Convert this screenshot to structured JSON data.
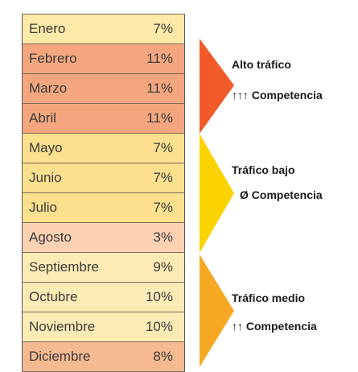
{
  "table": {
    "rows": [
      [
        "Enero",
        "7%"
      ],
      [
        "Febrero",
        "11%"
      ],
      [
        "Marzo",
        "11%"
      ],
      [
        "Abril",
        "11%"
      ],
      [
        "Mayo",
        "7%"
      ],
      [
        "Junio",
        "7%"
      ],
      [
        "Julio",
        "7%"
      ],
      [
        "Agosto",
        "3%"
      ],
      [
        "Septiembre",
        "9%"
      ],
      [
        "Octubre",
        "10%"
      ],
      [
        "Noviembre",
        "10%"
      ],
      [
        "Diciembre",
        "8%"
      ]
    ]
  },
  "groups": [
    {
      "title": "Alto tráfico",
      "subtitle": "↑↑↑ Competencia"
    },
    {
      "title": "Tráfico bajo",
      "subtitle": "Ø Competencia"
    },
    {
      "title": "Tráfico medio",
      "subtitle": "↑↑ Competencia"
    }
  ]
}
